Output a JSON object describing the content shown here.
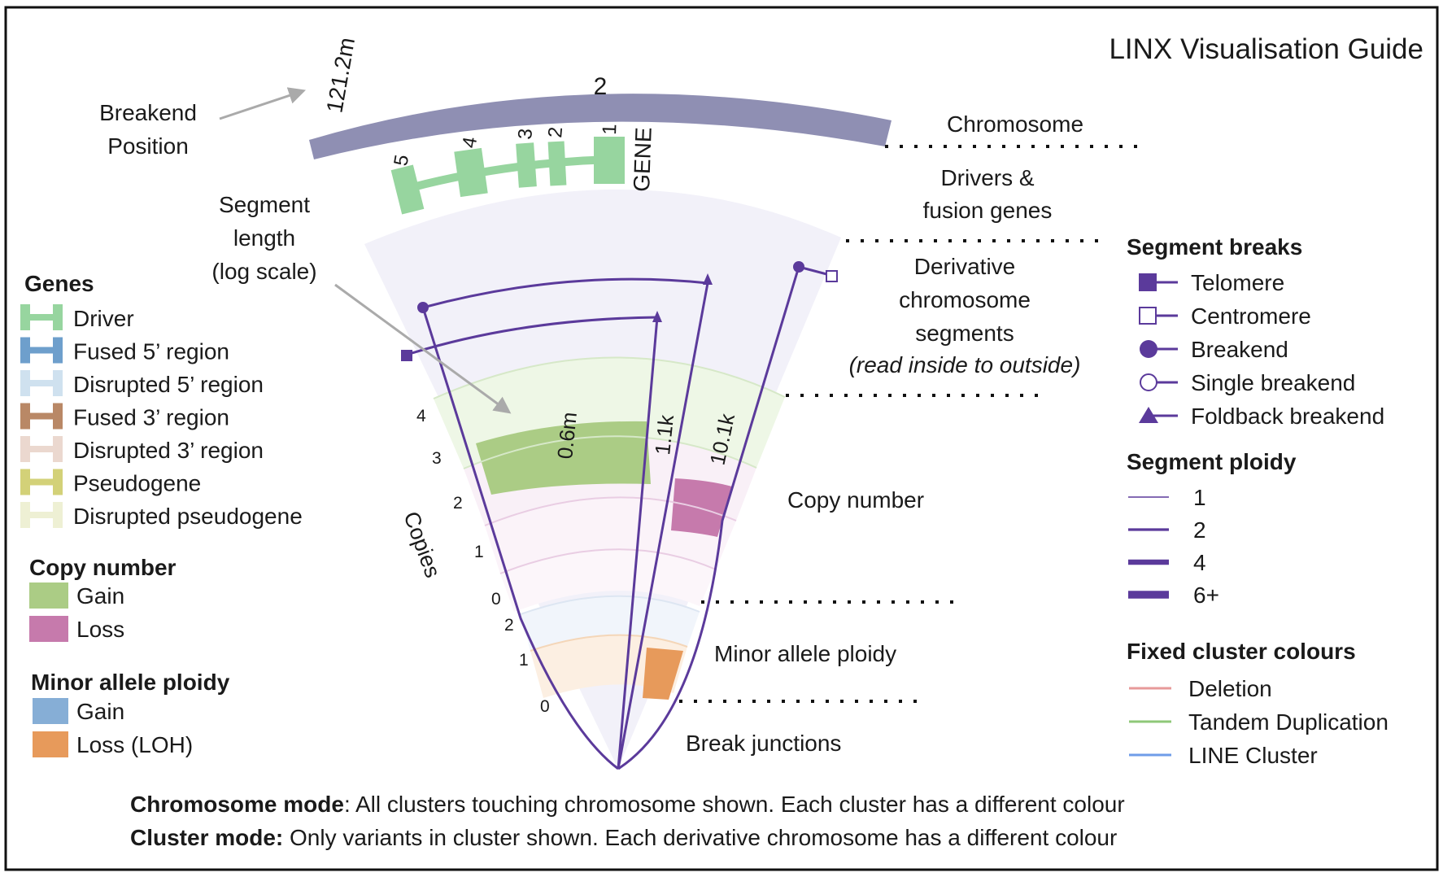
{
  "title": "LINX Visualisation Guide",
  "chromosome": {
    "name": "2",
    "breakend_position": "121.2m",
    "color": "#8f8fb3"
  },
  "gene": {
    "name": "GENE",
    "exons": [
      "5",
      "4",
      "3",
      "2",
      "1"
    ],
    "color": "#97d59f"
  },
  "annotations": {
    "breakend_position": [
      "Breakend",
      "Position"
    ],
    "segment_length": [
      "Segment",
      "length",
      "(log scale)"
    ],
    "chromosome": "Chromosome",
    "drivers": [
      "Drivers &",
      "fusion genes"
    ],
    "derivative": [
      "Derivative",
      "chromosome",
      "segments"
    ],
    "derivative_note": "(read inside to outside)",
    "copy_number": "Copy number",
    "minor_allele": "Minor allele ploidy",
    "break_junctions": "Break junctions",
    "copies_axis": "Copies"
  },
  "segments": {
    "lengths": [
      "0.6m",
      "1.1k",
      "10.1k"
    ],
    "line_color": "#5b3a9b"
  },
  "copy_number_ticks": [
    "4",
    "3",
    "2",
    "1",
    "0"
  ],
  "minor_allele_ticks": [
    "2",
    "1",
    "0"
  ],
  "legend": {
    "genes": {
      "title": "Genes",
      "items": [
        {
          "label": "Driver",
          "color": "#97d59f"
        },
        {
          "label": "Fused 5’ region",
          "color": "#6e9fcc"
        },
        {
          "label": "Disrupted 5’ region",
          "color": "#cfe1ef"
        },
        {
          "label": "Fused 3’ region",
          "color": "#b98866"
        },
        {
          "label": "Disrupted 3’ region",
          "color": "#ebd8cf"
        },
        {
          "label": "Pseudogene",
          "color": "#d3d178"
        },
        {
          "label": "Disrupted pseudogene",
          "color": "#eef0d4"
        }
      ]
    },
    "copy_number": {
      "title": "Copy number",
      "items": [
        {
          "label": "Gain",
          "color": "#abcc85"
        },
        {
          "label": "Loss",
          "color": "#c67aac"
        }
      ]
    },
    "minor_allele": {
      "title": "Minor allele ploidy",
      "items": [
        {
          "label": "Gain",
          "color": "#86aed6"
        },
        {
          "label": "Loss (LOH)",
          "color": "#e79a5b"
        }
      ]
    },
    "segment_breaks": {
      "title": "Segment breaks",
      "items": [
        {
          "label": "Telomere",
          "symbol": "filled-square"
        },
        {
          "label": "Centromere",
          "symbol": "open-square"
        },
        {
          "label": "Breakend",
          "symbol": "filled-circle"
        },
        {
          "label": "Single breakend",
          "symbol": "open-circle"
        },
        {
          "label": "Foldback breakend",
          "symbol": "filled-triangle"
        }
      ]
    },
    "segment_ploidy": {
      "title": "Segment ploidy",
      "items": [
        {
          "label": "1",
          "weight": 1
        },
        {
          "label": "2",
          "weight": 2
        },
        {
          "label": "4",
          "weight": 4
        },
        {
          "label": "6+",
          "weight": 6
        }
      ]
    },
    "fixed_cluster": {
      "title": "Fixed cluster colours",
      "items": [
        {
          "label": "Deletion",
          "color": "#e79a9a"
        },
        {
          "label": "Tandem Duplication",
          "color": "#8fc878"
        },
        {
          "label": "LINE Cluster",
          "color": "#6f9de8"
        }
      ]
    }
  },
  "footer": [
    {
      "bold": "Chromosome mode",
      "rest": ": All clusters touching chromosome shown.  Each cluster has a different colour"
    },
    {
      "bold": "Cluster mode:",
      "rest": " Only variants in cluster shown.  Each derivative chromosome has a different colour"
    }
  ]
}
